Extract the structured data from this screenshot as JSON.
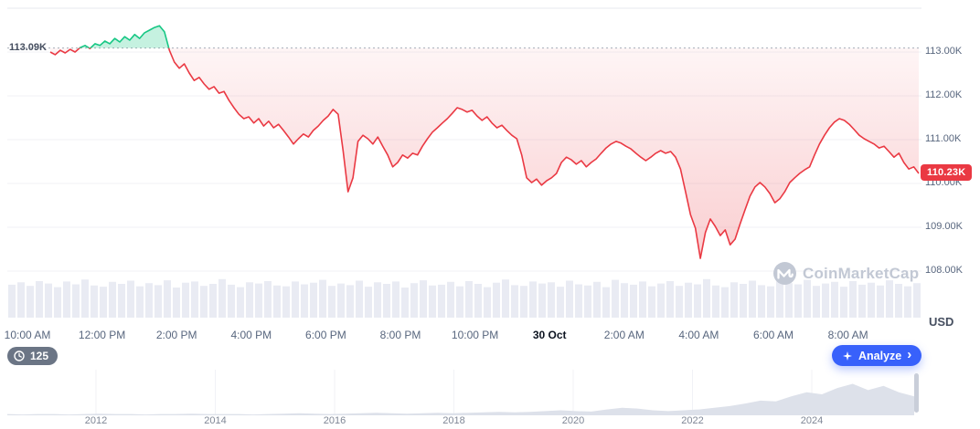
{
  "chart": {
    "baseline_label": "113.09K",
    "price_badge": "110.23K",
    "y_axis_labels": [
      "113.00K",
      "112.00K",
      "111.00K",
      "110.00K",
      "109.00K",
      "108.00K"
    ],
    "x_axis_labels": [
      "10:00 AM",
      "12:00 PM",
      "2:00 PM",
      "4:00 PM",
      "6:00 PM",
      "8:00 PM",
      "10:00 PM",
      "30 Oct",
      "2:00 AM",
      "4:00 AM",
      "6:00 AM",
      "8:00 AM"
    ],
    "x_axis_emphasis_index": 7,
    "currency": "USD",
    "watermark_text": "CoinMarketCap"
  },
  "toolbar": {
    "history_count": "125",
    "analyze_label": "Analyze",
    "analyze_chevron": "›"
  },
  "navigator": {
    "year_labels": [
      "2012",
      "2014",
      "2016",
      "2018",
      "2020",
      "2022",
      "2024"
    ]
  },
  "chart_data": {
    "type": "line",
    "title": "Intraday price vs. open (baseline 113.09K) with volume and multi-year range navigator",
    "unit": "thousand USD",
    "baseline_value": 113.09,
    "current_value": 110.23,
    "ylim": [
      108.0,
      114.0
    ],
    "y_ticks_values": [
      113,
      112,
      111,
      110,
      109,
      108
    ],
    "x_tick_labels": [
      "10:00 AM",
      "12:00 PM",
      "2:00 PM",
      "4:00 PM",
      "6:00 PM",
      "8:00 PM",
      "10:00 PM",
      "30 Oct",
      "2:00 AM",
      "4:00 AM",
      "6:00 AM",
      "8:00 AM"
    ],
    "prices_k": [
      113.0,
      112.94,
      113.04,
      112.98,
      113.06,
      113.0,
      113.1,
      113.15,
      113.08,
      113.19,
      113.15,
      113.25,
      113.19,
      113.31,
      113.23,
      113.35,
      113.27,
      113.4,
      113.31,
      113.44,
      113.5,
      113.56,
      113.6,
      113.46,
      113.04,
      112.77,
      112.63,
      112.73,
      112.52,
      112.35,
      112.42,
      112.27,
      112.15,
      112.21,
      112.06,
      112.1,
      111.9,
      111.73,
      111.58,
      111.48,
      111.52,
      111.38,
      111.48,
      111.31,
      111.42,
      111.27,
      111.35,
      111.21,
      111.06,
      110.9,
      111.02,
      111.13,
      111.06,
      111.21,
      111.31,
      111.44,
      111.54,
      111.69,
      111.58,
      110.75,
      109.81,
      110.13,
      110.96,
      111.1,
      111.02,
      110.9,
      111.06,
      110.85,
      110.65,
      110.38,
      110.48,
      110.65,
      110.58,
      110.69,
      110.65,
      110.85,
      111.02,
      111.17,
      111.27,
      111.38,
      111.48,
      111.6,
      111.73,
      111.69,
      111.63,
      111.67,
      111.54,
      111.44,
      111.52,
      111.38,
      111.27,
      111.33,
      111.21,
      111.1,
      111.02,
      110.65,
      110.13,
      110.02,
      110.1,
      109.96,
      110.06,
      110.13,
      110.23,
      110.48,
      110.6,
      110.54,
      110.44,
      110.52,
      110.38,
      110.48,
      110.56,
      110.69,
      110.81,
      110.9,
      110.96,
      110.92,
      110.85,
      110.79,
      110.69,
      110.6,
      110.52,
      110.6,
      110.69,
      110.75,
      110.69,
      110.73,
      110.6,
      110.33,
      109.81,
      109.29,
      108.98,
      108.29,
      108.88,
      109.19,
      109.02,
      108.81,
      108.94,
      108.6,
      108.73,
      109.08,
      109.4,
      109.71,
      109.92,
      110.02,
      109.92,
      109.77,
      109.56,
      109.65,
      109.81,
      110.02,
      110.13,
      110.23,
      110.31,
      110.38,
      110.65,
      110.9,
      111.1,
      111.27,
      111.4,
      111.48,
      111.44,
      111.35,
      111.23,
      111.1,
      111.02,
      110.96,
      110.9,
      110.81,
      110.85,
      110.73,
      110.6,
      110.69,
      110.48,
      110.33,
      110.38,
      110.23
    ],
    "volume_profile": [
      0.82,
      0.88,
      0.79,
      0.91,
      0.85,
      0.76,
      0.9,
      0.83,
      0.95,
      0.8,
      0.77,
      0.89,
      0.84,
      0.92,
      0.78,
      0.86,
      0.81,
      0.93,
      0.75,
      0.87,
      0.9,
      0.79,
      0.84,
      0.96,
      0.82,
      0.76,
      0.88,
      0.85,
      0.91,
      0.8,
      0.78,
      0.9,
      0.83,
      0.87,
      0.94,
      0.79,
      0.85,
      0.81,
      0.92,
      0.77,
      0.88,
      0.84,
      0.9,
      0.75,
      0.86,
      0.93,
      0.8,
      0.82,
      0.89,
      0.78,
      0.91,
      0.84,
      0.76,
      0.87,
      0.95,
      0.81,
      0.79,
      0.9,
      0.85,
      0.88,
      0.77,
      0.92,
      0.83,
      0.8,
      0.89,
      0.76,
      0.94,
      0.86,
      0.82,
      0.9,
      0.78,
      0.85,
      0.91,
      0.79,
      0.87,
      0.83,
      0.96,
      0.8,
      0.76,
      0.88,
      0.84,
      0.92,
      0.81,
      0.78,
      0.9,
      0.86,
      0.83,
      0.94,
      0.79,
      0.85,
      0.89,
      0.77,
      0.91,
      0.82,
      0.87,
      0.8,
      0.93,
      0.84,
      0.78,
      0.86
    ],
    "navigator": {
      "years": [
        2012,
        2014,
        2016,
        2018,
        2020,
        2022,
        2024
      ],
      "activity_profile": [
        0.03,
        0.02,
        0.03,
        0.03,
        0.02,
        0.03,
        0.04,
        0.03,
        0.03,
        0.02,
        0.03,
        0.03,
        0.04,
        0.03,
        0.03,
        0.03,
        0.02,
        0.03,
        0.04,
        0.05,
        0.04,
        0.03,
        0.04,
        0.05,
        0.06,
        0.05,
        0.04,
        0.05,
        0.06,
        0.05,
        0.06,
        0.07,
        0.08,
        0.07,
        0.08,
        0.1,
        0.12,
        0.1,
        0.09,
        0.14,
        0.18,
        0.16,
        0.12,
        0.1,
        0.12,
        0.14,
        0.18,
        0.22,
        0.28,
        0.35,
        0.33,
        0.45,
        0.55,
        0.5,
        0.65,
        0.75,
        0.6,
        0.7,
        0.55,
        0.45
      ]
    },
    "colors": {
      "up": "#16c784",
      "down": "#ea3943",
      "baseline_line": "#a8aeba",
      "volume": "#e9ebf3",
      "navigator_fill": "#dde1ea",
      "accent_blue": "#3861fb"
    }
  }
}
